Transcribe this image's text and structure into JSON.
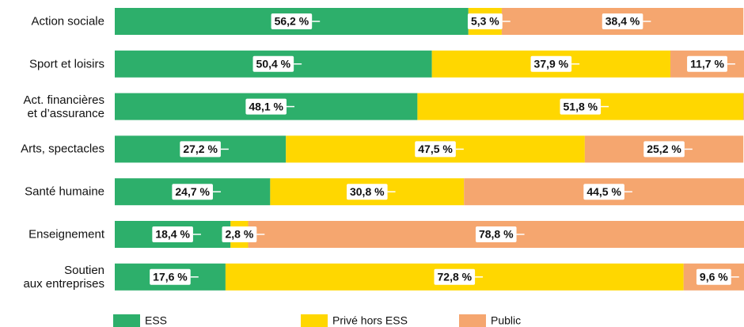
{
  "chart_data": {
    "type": "stacked-bar-horizontal",
    "categories": [
      "Action sociale",
      "Sport et loisirs",
      "Act. financières\net d’assurance",
      "Arts, spectacles",
      "Santé humaine",
      "Enseignement",
      "Soutien\naux entreprises"
    ],
    "xlim": [
      0,
      100
    ],
    "series": [
      {
        "name": "ESS",
        "color": "#2daf6b",
        "values": [
          56.2,
          50.4,
          48.1,
          27.2,
          24.7,
          18.4,
          17.6
        ],
        "value_labels": [
          "56,2 %",
          "50,4 %",
          "48,1 %",
          "27,2 %",
          "24,7 %",
          "18,4 %",
          "17,6 %"
        ]
      },
      {
        "name": "Privé hors ESS",
        "color": "#ffd700",
        "values": [
          5.3,
          37.9,
          51.8,
          47.5,
          30.8,
          2.8,
          72.8
        ],
        "value_labels": [
          "5,3 %",
          "37,9 %",
          "51,8 %",
          "47,5 %",
          "30,8 %",
          "2,8 %",
          "72,8 %"
        ]
      },
      {
        "name": "Public",
        "color": "#f5a66f",
        "values": [
          38.4,
          11.7,
          0.1,
          25.2,
          44.5,
          78.8,
          9.6
        ],
        "value_labels": [
          "38,4 %",
          "11,7 %",
          null,
          "25,2 %",
          "44,5 %",
          "78,8 %",
          "9,6 %"
        ]
      }
    ],
    "legend": "bottom"
  }
}
